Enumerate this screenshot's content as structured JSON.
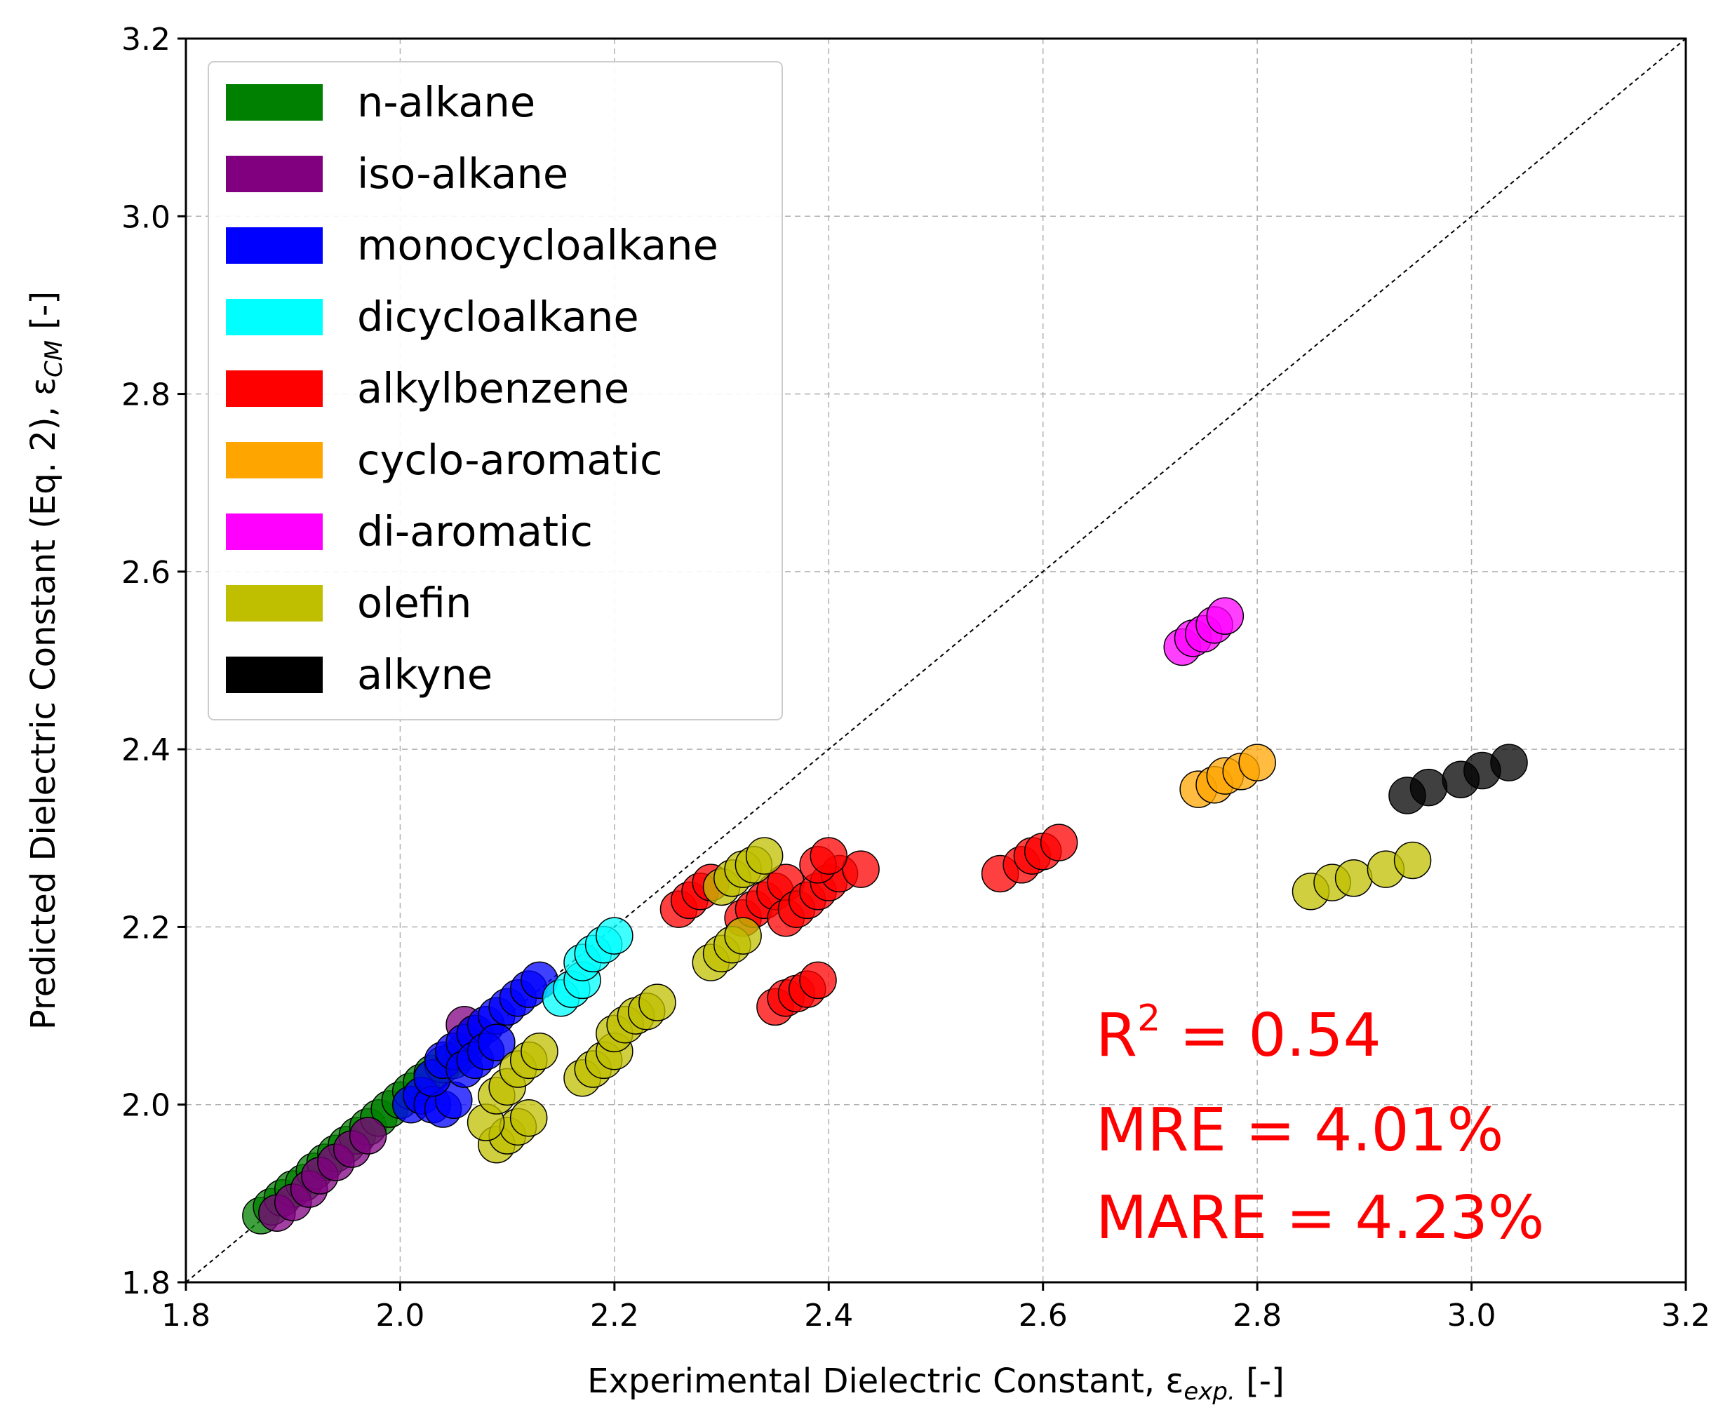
{
  "chart_data": {
    "type": "scatter",
    "title": "",
    "xlabel": "Experimental Dielectric Constant, ε",
    "xlabel_subscript": "exp.",
    "xlabel_suffix": " [-]",
    "ylabel": "Predicted Dielectric Constant (Eq. 2), ε",
    "ylabel_subscript": "CM",
    "ylabel_suffix": " [-]",
    "xlim": [
      1.8,
      3.2
    ],
    "ylim": [
      1.8,
      3.2
    ],
    "xticks": [
      "1.8",
      "2.0",
      "2.2",
      "2.4",
      "2.6",
      "2.8",
      "3.0",
      "3.2"
    ],
    "yticks": [
      "1.8",
      "2.0",
      "2.2",
      "2.4",
      "2.6",
      "2.8",
      "3.0",
      "3.2"
    ],
    "grid": true,
    "reference_line": "y = x",
    "legend_position": "top-left",
    "annotations": [
      {
        "text": "R",
        "sup": "2",
        "rest": " = 0.54"
      },
      {
        "text": "MRE = 4.01%"
      },
      {
        "text": "MARE = 4.23%"
      }
    ],
    "annotation_color": "#ff0000",
    "series": [
      {
        "name": "n-alkane",
        "color": "#008000",
        "points": [
          [
            1.87,
            1.875
          ],
          [
            1.88,
            1.885
          ],
          [
            1.89,
            1.895
          ],
          [
            1.9,
            1.905
          ],
          [
            1.91,
            1.912
          ],
          [
            1.92,
            1.925
          ],
          [
            1.93,
            1.935
          ],
          [
            1.94,
            1.945
          ],
          [
            1.95,
            1.955
          ],
          [
            1.96,
            1.965
          ],
          [
            1.97,
            1.975
          ],
          [
            1.98,
            1.985
          ],
          [
            1.99,
            1.995
          ],
          [
            2.0,
            2.005
          ],
          [
            2.01,
            2.015
          ],
          [
            2.02,
            2.025
          ],
          [
            2.03,
            2.035
          ],
          [
            2.04,
            2.045
          ],
          [
            2.05,
            2.05
          ],
          [
            2.06,
            2.06
          ]
        ]
      },
      {
        "name": "iso-alkane",
        "color": "#800080",
        "points": [
          [
            1.885,
            1.878
          ],
          [
            1.9,
            1.89
          ],
          [
            1.915,
            1.905
          ],
          [
            1.925,
            1.92
          ],
          [
            1.94,
            1.935
          ],
          [
            1.955,
            1.95
          ],
          [
            1.97,
            1.965
          ],
          [
            2.06,
            2.09
          ],
          [
            2.07,
            2.08
          ]
        ]
      },
      {
        "name": "monocycloalkane",
        "color": "#0000ff",
        "points": [
          [
            2.01,
            2.0
          ],
          [
            2.02,
            2.01
          ],
          [
            2.03,
            2.0
          ],
          [
            2.04,
            1.995
          ],
          [
            2.05,
            2.005
          ],
          [
            2.03,
            2.03
          ],
          [
            2.04,
            2.05
          ],
          [
            2.05,
            2.06
          ],
          [
            2.06,
            2.07
          ],
          [
            2.07,
            2.08
          ],
          [
            2.08,
            2.09
          ],
          [
            2.09,
            2.1
          ],
          [
            2.1,
            2.11
          ],
          [
            2.11,
            2.12
          ],
          [
            2.12,
            2.13
          ],
          [
            2.13,
            2.14
          ],
          [
            2.06,
            2.04
          ],
          [
            2.07,
            2.05
          ],
          [
            2.08,
            2.06
          ],
          [
            2.09,
            2.07
          ]
        ]
      },
      {
        "name": "dicycloalkane",
        "color": "#00ffff",
        "points": [
          [
            2.15,
            2.12
          ],
          [
            2.16,
            2.13
          ],
          [
            2.17,
            2.14
          ],
          [
            2.17,
            2.16
          ],
          [
            2.18,
            2.17
          ],
          [
            2.19,
            2.18
          ],
          [
            2.2,
            2.19
          ]
        ]
      },
      {
        "name": "alkylbenzene",
        "color": "#ff0000",
        "points": [
          [
            2.26,
            2.22
          ],
          [
            2.27,
            2.23
          ],
          [
            2.28,
            2.24
          ],
          [
            2.29,
            2.25
          ],
          [
            2.32,
            2.21
          ],
          [
            2.33,
            2.22
          ],
          [
            2.34,
            2.23
          ],
          [
            2.35,
            2.24
          ],
          [
            2.36,
            2.25
          ],
          [
            2.36,
            2.21
          ],
          [
            2.37,
            2.22
          ],
          [
            2.38,
            2.23
          ],
          [
            2.39,
            2.24
          ],
          [
            2.4,
            2.25
          ],
          [
            2.41,
            2.26
          ],
          [
            2.43,
            2.265
          ],
          [
            2.39,
            2.27
          ],
          [
            2.4,
            2.28
          ],
          [
            2.35,
            2.11
          ],
          [
            2.36,
            2.12
          ],
          [
            2.37,
            2.125
          ],
          [
            2.38,
            2.13
          ],
          [
            2.39,
            2.14
          ],
          [
            2.56,
            2.26
          ],
          [
            2.58,
            2.27
          ],
          [
            2.59,
            2.28
          ],
          [
            2.6,
            2.285
          ],
          [
            2.615,
            2.295
          ]
        ]
      },
      {
        "name": "cyclo-aromatic",
        "color": "#ffa500",
        "points": [
          [
            2.745,
            2.355
          ],
          [
            2.76,
            2.36
          ],
          [
            2.77,
            2.37
          ],
          [
            2.785,
            2.375
          ],
          [
            2.8,
            2.385
          ]
        ]
      },
      {
        "name": "di-aromatic",
        "color": "#ff00ff",
        "points": [
          [
            2.73,
            2.515
          ],
          [
            2.74,
            2.525
          ],
          [
            2.75,
            2.53
          ],
          [
            2.76,
            2.54
          ],
          [
            2.77,
            2.55
          ]
        ]
      },
      {
        "name": "olefin",
        "color": "#bfbf00",
        "points": [
          [
            2.09,
            1.955
          ],
          [
            2.1,
            1.965
          ],
          [
            2.11,
            1.975
          ],
          [
            2.12,
            1.985
          ],
          [
            2.08,
            1.98
          ],
          [
            2.09,
            2.01
          ],
          [
            2.1,
            2.02
          ],
          [
            2.11,
            2.04
          ],
          [
            2.12,
            2.05
          ],
          [
            2.13,
            2.06
          ],
          [
            2.17,
            2.03
          ],
          [
            2.18,
            2.04
          ],
          [
            2.19,
            2.05
          ],
          [
            2.2,
            2.06
          ],
          [
            2.2,
            2.08
          ],
          [
            2.21,
            2.09
          ],
          [
            2.22,
            2.1
          ],
          [
            2.23,
            2.105
          ],
          [
            2.24,
            2.115
          ],
          [
            2.29,
            2.16
          ],
          [
            2.3,
            2.17
          ],
          [
            2.31,
            2.18
          ],
          [
            2.32,
            2.19
          ],
          [
            2.3,
            2.245
          ],
          [
            2.31,
            2.255
          ],
          [
            2.32,
            2.265
          ],
          [
            2.33,
            2.27
          ],
          [
            2.34,
            2.28
          ],
          [
            2.85,
            2.24
          ],
          [
            2.87,
            2.25
          ],
          [
            2.89,
            2.255
          ],
          [
            2.92,
            2.265
          ],
          [
            2.945,
            2.275
          ]
        ]
      },
      {
        "name": "alkyne",
        "color": "#000000",
        "points": [
          [
            2.94,
            2.348
          ],
          [
            2.96,
            2.357
          ],
          [
            2.99,
            2.366
          ],
          [
            3.01,
            2.376
          ],
          [
            3.035,
            2.385
          ]
        ]
      }
    ]
  }
}
